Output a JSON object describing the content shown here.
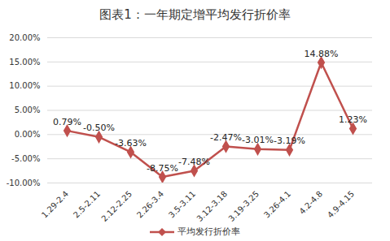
{
  "chart_data": {
    "type": "line",
    "title": "图表1：一年期定增平均发行折价率",
    "categories": [
      "1.29-2.4",
      "2.5-2.11",
      "2.12-2.25",
      "2.26-3.4",
      "3.5-3.11",
      "3.12-3.18",
      "3.19-3.25",
      "3.26-4.1",
      "4.2-4.8",
      "4.9-4.15"
    ],
    "series": [
      {
        "name": "平均发行折价率",
        "color": "#c0504d",
        "marker": "diamond",
        "values": [
          0.79,
          -0.5,
          -3.63,
          -8.75,
          -7.48,
          -2.47,
          -3.01,
          -3.19,
          14.88,
          1.23
        ],
        "value_labels": [
          "0.79%",
          "-0.50%",
          "-3.63%",
          "-8.75%",
          "-7.48%",
          "-2.47%",
          "-3.01%",
          "-3.19%",
          "14.88%",
          "1.23%"
        ]
      }
    ],
    "ylim": [
      -10,
      20
    ],
    "yticks": [
      {
        "value": -10,
        "label": "-10.00%"
      },
      {
        "value": -5,
        "label": "-5.00%"
      },
      {
        "value": 0,
        "label": "0.00%"
      },
      {
        "value": 5,
        "label": "5.00%"
      },
      {
        "value": 10,
        "label": "10.00%"
      },
      {
        "value": 15,
        "label": "15.00%"
      },
      {
        "value": 20,
        "label": "20.00%"
      }
    ],
    "grid": true,
    "data_labels": true,
    "legend": "bottom"
  }
}
